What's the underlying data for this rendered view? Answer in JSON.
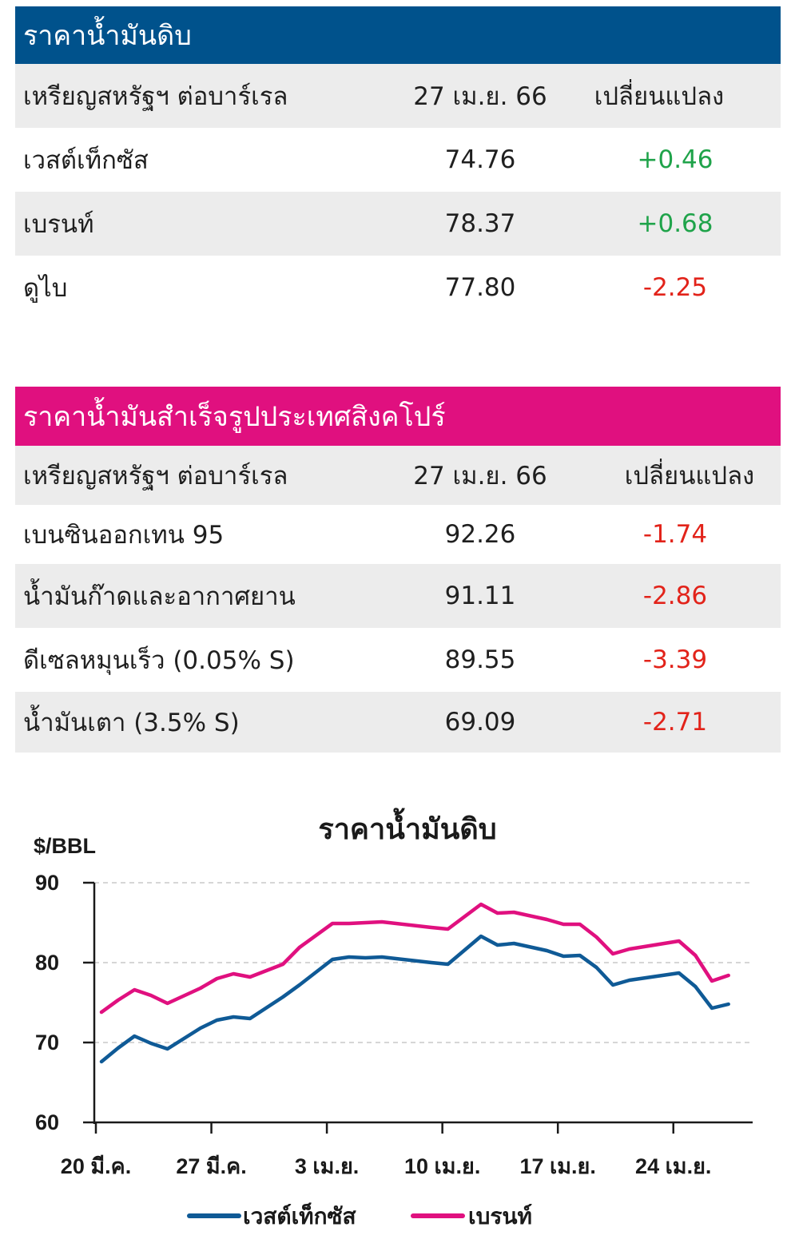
{
  "crude_table": {
    "title": "ราคาน้ำมันดิบ",
    "header_color": "#00528c",
    "columns": [
      "เหรียญสหรัฐฯ ต่อบาร์เรล",
      "27 เม.ย. 66",
      "เปลี่ยนแปลง"
    ],
    "rows": [
      {
        "name": "เวสต์เท็กซัส",
        "price": "74.76",
        "change": "+0.46"
      },
      {
        "name": "เบรนท์",
        "price": "78.37",
        "change": "+0.68"
      },
      {
        "name": "ดูไบ",
        "price": "77.80",
        "change": "-2.25"
      }
    ]
  },
  "refined_table": {
    "title": "ราคาน้ำมันสำเร็จรูปประเทศสิงคโปร์",
    "header_color": "#e0107f",
    "columns": [
      "เหรียญสหรัฐฯ ต่อบาร์เรล",
      "27 เม.ย. 66",
      "เปลี่ยนแปลง"
    ],
    "rows": [
      {
        "name": "เบนซินออกเทน 95",
        "price": "92.26",
        "change": "-1.74"
      },
      {
        "name": "น้ำมันก๊าดและอากาศยาน",
        "price": "91.11",
        "change": "-2.86"
      },
      {
        "name": "ดีเซลหมุนเร็ว (0.05% S)",
        "price": "89.55",
        "change": "-3.39"
      },
      {
        "name": "น้ำมันเตา (3.5% S)",
        "price": "69.09",
        "change": "-2.71"
      }
    ]
  },
  "chart_data": {
    "type": "line",
    "title": "ราคาน้ำมันดิบ",
    "ylabel": "$/BBL",
    "xlabel": "",
    "ylim": [
      60,
      90
    ],
    "yticks": [
      60,
      70,
      80,
      90
    ],
    "grid": true,
    "legend_position": "bottom",
    "xtick_labels": [
      "20 มี.ค.",
      "27 มี.ค.",
      "3 เม.ย.",
      "10 เม.ย.",
      "17 เม.ย.",
      "24 เม.ย."
    ],
    "series": [
      {
        "name": "เวสต์เท็กซัส",
        "color": "#0f5a96",
        "points": [
          [
            0,
            67.6
          ],
          [
            1,
            69.3
          ],
          [
            2,
            70.8
          ],
          [
            3,
            69.9
          ],
          [
            4,
            69.2
          ],
          [
            6,
            71.8
          ],
          [
            7,
            72.8
          ],
          [
            8,
            73.2
          ],
          [
            9,
            73.0
          ],
          [
            11,
            75.7
          ],
          [
            12,
            77.2
          ],
          [
            14,
            80.4
          ],
          [
            15,
            80.7
          ],
          [
            16,
            80.6
          ],
          [
            17,
            80.7
          ],
          [
            20,
            80.0
          ],
          [
            21,
            79.8
          ],
          [
            23,
            83.3
          ],
          [
            24,
            82.2
          ],
          [
            25,
            82.4
          ],
          [
            27,
            81.5
          ],
          [
            28,
            80.8
          ],
          [
            29,
            80.9
          ],
          [
            30,
            79.4
          ],
          [
            31,
            77.2
          ],
          [
            32,
            77.8
          ],
          [
            35,
            78.7
          ],
          [
            36,
            77.0
          ],
          [
            37,
            74.3
          ],
          [
            38,
            74.8
          ]
        ]
      },
      {
        "name": "เบรนท์",
        "color": "#e0107f",
        "points": [
          [
            0,
            73.8
          ],
          [
            1,
            75.3
          ],
          [
            2,
            76.6
          ],
          [
            3,
            75.9
          ],
          [
            4,
            74.9
          ],
          [
            6,
            76.8
          ],
          [
            7,
            78.0
          ],
          [
            8,
            78.6
          ],
          [
            9,
            78.2
          ],
          [
            11,
            79.8
          ],
          [
            12,
            81.9
          ],
          [
            14,
            84.9
          ],
          [
            15,
            84.9
          ],
          [
            17,
            85.1
          ],
          [
            20,
            84.4
          ],
          [
            21,
            84.2
          ],
          [
            23,
            87.3
          ],
          [
            24,
            86.2
          ],
          [
            25,
            86.3
          ],
          [
            27,
            85.4
          ],
          [
            28,
            84.8
          ],
          [
            29,
            84.8
          ],
          [
            30,
            83.2
          ],
          [
            31,
            81.1
          ],
          [
            32,
            81.7
          ],
          [
            35,
            82.7
          ],
          [
            36,
            80.9
          ],
          [
            37,
            77.7
          ],
          [
            38,
            78.4
          ]
        ]
      }
    ]
  }
}
